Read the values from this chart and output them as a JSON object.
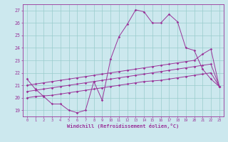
{
  "bg_color": "#cce8ee",
  "line_color": "#993399",
  "grid_color": "#99cccc",
  "xlabel": "Windchill (Refroidissement éolien,°C)",
  "x_hours": [
    0,
    1,
    2,
    3,
    4,
    5,
    6,
    7,
    8,
    9,
    10,
    11,
    12,
    13,
    14,
    15,
    16,
    17,
    18,
    19,
    20,
    21,
    22,
    23
  ],
  "temp_line": [
    21.5,
    20.7,
    20.1,
    19.5,
    19.5,
    19.0,
    18.8,
    19.0,
    21.3,
    19.8,
    23.1,
    24.9,
    25.9,
    27.05,
    26.9,
    26.0,
    26.0,
    26.7,
    26.1,
    24.0,
    23.8,
    22.3,
    21.5,
    20.9
  ],
  "reg1": [
    21.0,
    21.1,
    21.2,
    21.3,
    21.4,
    21.5,
    21.6,
    21.7,
    21.8,
    21.9,
    22.0,
    22.1,
    22.2,
    22.3,
    22.4,
    22.5,
    22.6,
    22.7,
    22.8,
    22.9,
    23.0,
    23.5,
    23.9,
    20.9
  ],
  "reg2": [
    20.5,
    20.6,
    20.7,
    20.8,
    20.9,
    21.0,
    21.1,
    21.2,
    21.3,
    21.4,
    21.5,
    21.6,
    21.7,
    21.8,
    21.9,
    22.0,
    22.1,
    22.2,
    22.3,
    22.4,
    22.5,
    22.6,
    22.7,
    20.9
  ],
  "reg3": [
    20.0,
    20.1,
    20.15,
    20.2,
    20.3,
    20.4,
    20.5,
    20.6,
    20.7,
    20.8,
    20.9,
    21.0,
    21.1,
    21.2,
    21.3,
    21.35,
    21.4,
    21.5,
    21.6,
    21.7,
    21.8,
    21.9,
    22.0,
    20.9
  ],
  "ylim": [
    18.5,
    27.5
  ],
  "yticks": [
    19,
    20,
    21,
    22,
    23,
    24,
    25,
    26,
    27
  ],
  "figsize": [
    3.2,
    2.0
  ],
  "dpi": 100
}
